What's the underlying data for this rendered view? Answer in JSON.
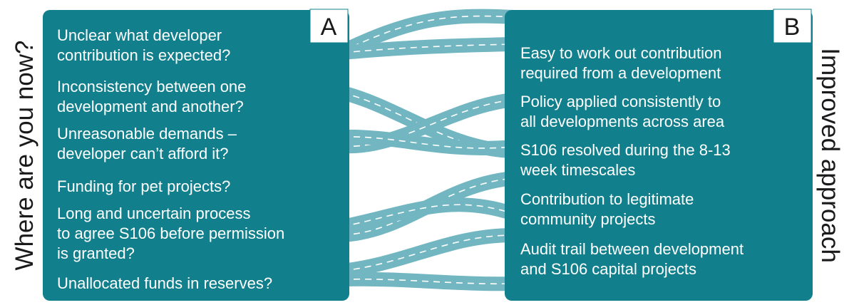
{
  "left_label": "Where are you now?",
  "right_label": "Improved approach",
  "box_a": {
    "badge": "A",
    "items": [
      [
        "Unclear what developer",
        "contribution is expected?"
      ],
      [
        "Inconsistency between one",
        "development and another?"
      ],
      [
        "Unreasonable demands –",
        "developer can’t afford it?"
      ],
      [
        "Funding for pet projects?"
      ],
      [
        "Long and uncertain process",
        "to agree S106 before permission",
        "is granted?"
      ],
      [
        "Unallocated funds in reserves?"
      ]
    ]
  },
  "box_b": {
    "badge": "B",
    "items": [
      [
        "Easy to work out contribution",
        "required from a development"
      ],
      [
        "Policy applied consistently to",
        "all developments across area"
      ],
      [
        "S106 resolved during the 8-13",
        "week timescales"
      ],
      [
        "Contribution to legitimate",
        "community projects"
      ],
      [
        "Audit trail between development",
        "and S106 capital projects"
      ]
    ]
  }
}
